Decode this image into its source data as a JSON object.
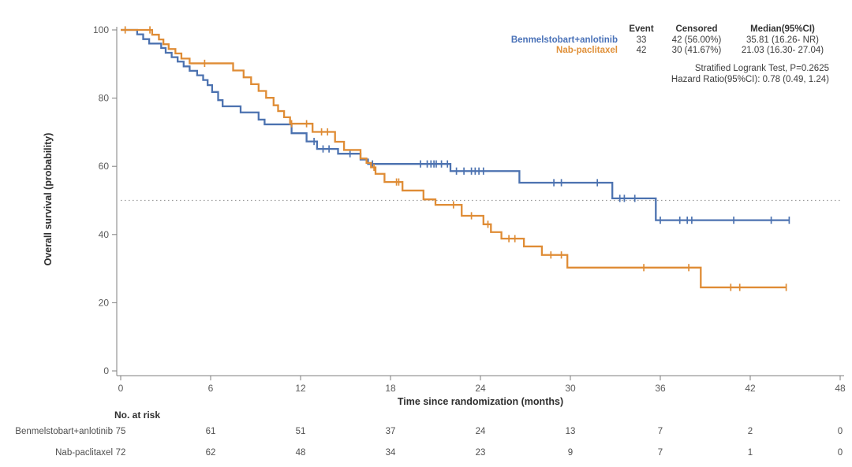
{
  "axes": {
    "x_label": "Time since randomization (months)",
    "y_label": "Overall survival (probability)",
    "x_ticks": [
      0,
      6,
      12,
      18,
      24,
      30,
      36,
      42,
      48
    ],
    "y_ticks": [
      0,
      20,
      40,
      60,
      80,
      100
    ]
  },
  "legend_table": {
    "headers": [
      "Event",
      "Censored",
      "Median(95%CI)"
    ],
    "rows": [
      {
        "label": "Benmelstobart+anlotinib",
        "color": "#4a72b8",
        "event": "33",
        "censored": "42 (56.00%)",
        "median": "35.81 (16.26- NR)"
      },
      {
        "label": "Nab-paclitaxel",
        "color": "#e0913a",
        "event": "42",
        "censored": "30 (41.67%)",
        "median": "21.03 (16.30- 27.04)"
      }
    ]
  },
  "stats": {
    "line1": "Stratified Logrank Test, P=0.2625",
    "line2": "Hazard Ratio(95%CI): 0.78 (0.49, 1.24)"
  },
  "risk_table": {
    "title": "No. at risk",
    "rows": [
      {
        "label": "Benmelstobart+anlotinib",
        "counts": [
          "75",
          "61",
          "51",
          "37",
          "24",
          "13",
          "7",
          "2",
          "0"
        ]
      },
      {
        "label": "Nab-paclitaxel",
        "counts": [
          "72",
          "62",
          "48",
          "34",
          "23",
          "9",
          "7",
          "1",
          "0"
        ]
      }
    ]
  },
  "chart_data": {
    "type": "line",
    "subtype": "kaplan-meier-step",
    "title": "",
    "xlabel": "Time since randomization (months)",
    "ylabel": "Overall survival (probability)",
    "xlim": [
      0,
      48
    ],
    "ylim": [
      0,
      100
    ],
    "grid": false,
    "reference_line_y": 50,
    "series": [
      {
        "name": "Benmelstobart+anlotinib",
        "color": "#4c72b0",
        "steps": [
          [
            0,
            100
          ],
          [
            1.1,
            98.7
          ],
          [
            1.5,
            97.3
          ],
          [
            1.9,
            96
          ],
          [
            2.7,
            94.7
          ],
          [
            3.0,
            93.3
          ],
          [
            3.4,
            92
          ],
          [
            3.8,
            90.7
          ],
          [
            4.2,
            89.3
          ],
          [
            4.6,
            88
          ],
          [
            5.1,
            86.7
          ],
          [
            5.5,
            85.3
          ],
          [
            5.8,
            83.8
          ],
          [
            6.1,
            81.8
          ],
          [
            6.5,
            79.4
          ],
          [
            6.8,
            77.6
          ],
          [
            8.0,
            75.8
          ],
          [
            9.2,
            73.7
          ],
          [
            9.6,
            72.3
          ],
          [
            11.4,
            69.7
          ],
          [
            12.4,
            67.3
          ],
          [
            13.1,
            65.1
          ],
          [
            14.5,
            63.7
          ],
          [
            16.0,
            62.0
          ],
          [
            16.5,
            60.7
          ],
          [
            22.0,
            58.6
          ],
          [
            26.6,
            55.2
          ],
          [
            32.8,
            50.6
          ],
          [
            35.7,
            44.2
          ],
          [
            44.6,
            44.2
          ]
        ],
        "censors": [
          [
            12.9,
            67.3
          ],
          [
            13.5,
            65.1
          ],
          [
            13.9,
            65.1
          ],
          [
            15.3,
            63.7
          ],
          [
            16.8,
            60.7
          ],
          [
            20.0,
            60.7
          ],
          [
            20.45,
            60.7
          ],
          [
            20.7,
            60.7
          ],
          [
            20.9,
            60.7
          ],
          [
            21.05,
            60.7
          ],
          [
            21.4,
            60.7
          ],
          [
            21.8,
            60.7
          ],
          [
            22.4,
            58.6
          ],
          [
            22.9,
            58.6
          ],
          [
            23.4,
            58.6
          ],
          [
            23.65,
            58.6
          ],
          [
            23.9,
            58.6
          ],
          [
            24.2,
            58.6
          ],
          [
            28.9,
            55.2
          ],
          [
            29.4,
            55.2
          ],
          [
            31.8,
            55.2
          ],
          [
            33.3,
            50.6
          ],
          [
            33.6,
            50.6
          ],
          [
            34.3,
            50.6
          ],
          [
            36.0,
            44.2
          ],
          [
            37.3,
            44.2
          ],
          [
            37.8,
            44.2
          ],
          [
            38.1,
            44.2
          ],
          [
            40.9,
            44.2
          ],
          [
            43.4,
            44.2
          ],
          [
            44.6,
            44.2
          ]
        ]
      },
      {
        "name": "Nab-paclitaxel",
        "color": "#df8c35",
        "steps": [
          [
            0,
            100
          ],
          [
            2.1,
            98.6
          ],
          [
            2.55,
            97.2
          ],
          [
            2.85,
            95.8
          ],
          [
            3.2,
            94.4
          ],
          [
            3.65,
            93.1
          ],
          [
            4.05,
            91.6
          ],
          [
            4.6,
            90.2
          ],
          [
            7.5,
            88.1
          ],
          [
            8.2,
            86.1
          ],
          [
            8.7,
            84.1
          ],
          [
            9.2,
            82.1
          ],
          [
            9.7,
            80.1
          ],
          [
            10.2,
            77.9
          ],
          [
            10.5,
            76.2
          ],
          [
            10.9,
            74.4
          ],
          [
            11.3,
            72.5
          ],
          [
            12.8,
            70.1
          ],
          [
            14.3,
            67.2
          ],
          [
            14.9,
            64.8
          ],
          [
            16.0,
            62.3
          ],
          [
            16.4,
            61.0
          ],
          [
            16.7,
            59.7
          ],
          [
            17.0,
            57.8
          ],
          [
            17.6,
            55.4
          ],
          [
            18.8,
            52.9
          ],
          [
            20.2,
            50.3
          ],
          [
            21.0,
            48.7
          ],
          [
            22.75,
            45.5
          ],
          [
            24.2,
            43.0
          ],
          [
            24.7,
            40.7
          ],
          [
            25.4,
            38.8
          ],
          [
            26.9,
            36.5
          ],
          [
            28.1,
            34.0
          ],
          [
            29.8,
            30.3
          ],
          [
            38.7,
            24.5
          ],
          [
            44.4,
            24.5
          ]
        ],
        "censors": [
          [
            0.3,
            100
          ],
          [
            1.95,
            100
          ],
          [
            5.6,
            90.2
          ],
          [
            11.4,
            72.5
          ],
          [
            12.4,
            72.5
          ],
          [
            13.4,
            70.1
          ],
          [
            13.8,
            70.1
          ],
          [
            16.9,
            59.7
          ],
          [
            18.4,
            55.4
          ],
          [
            18.55,
            55.4
          ],
          [
            22.2,
            48.7
          ],
          [
            23.4,
            45.5
          ],
          [
            24.5,
            43.0
          ],
          [
            25.9,
            38.8
          ],
          [
            26.3,
            38.8
          ],
          [
            28.7,
            34.0
          ],
          [
            29.4,
            34.0
          ],
          [
            34.9,
            30.3
          ],
          [
            37.9,
            30.3
          ],
          [
            40.7,
            24.5
          ],
          [
            41.3,
            24.5
          ],
          [
            44.4,
            24.5
          ]
        ]
      }
    ]
  }
}
